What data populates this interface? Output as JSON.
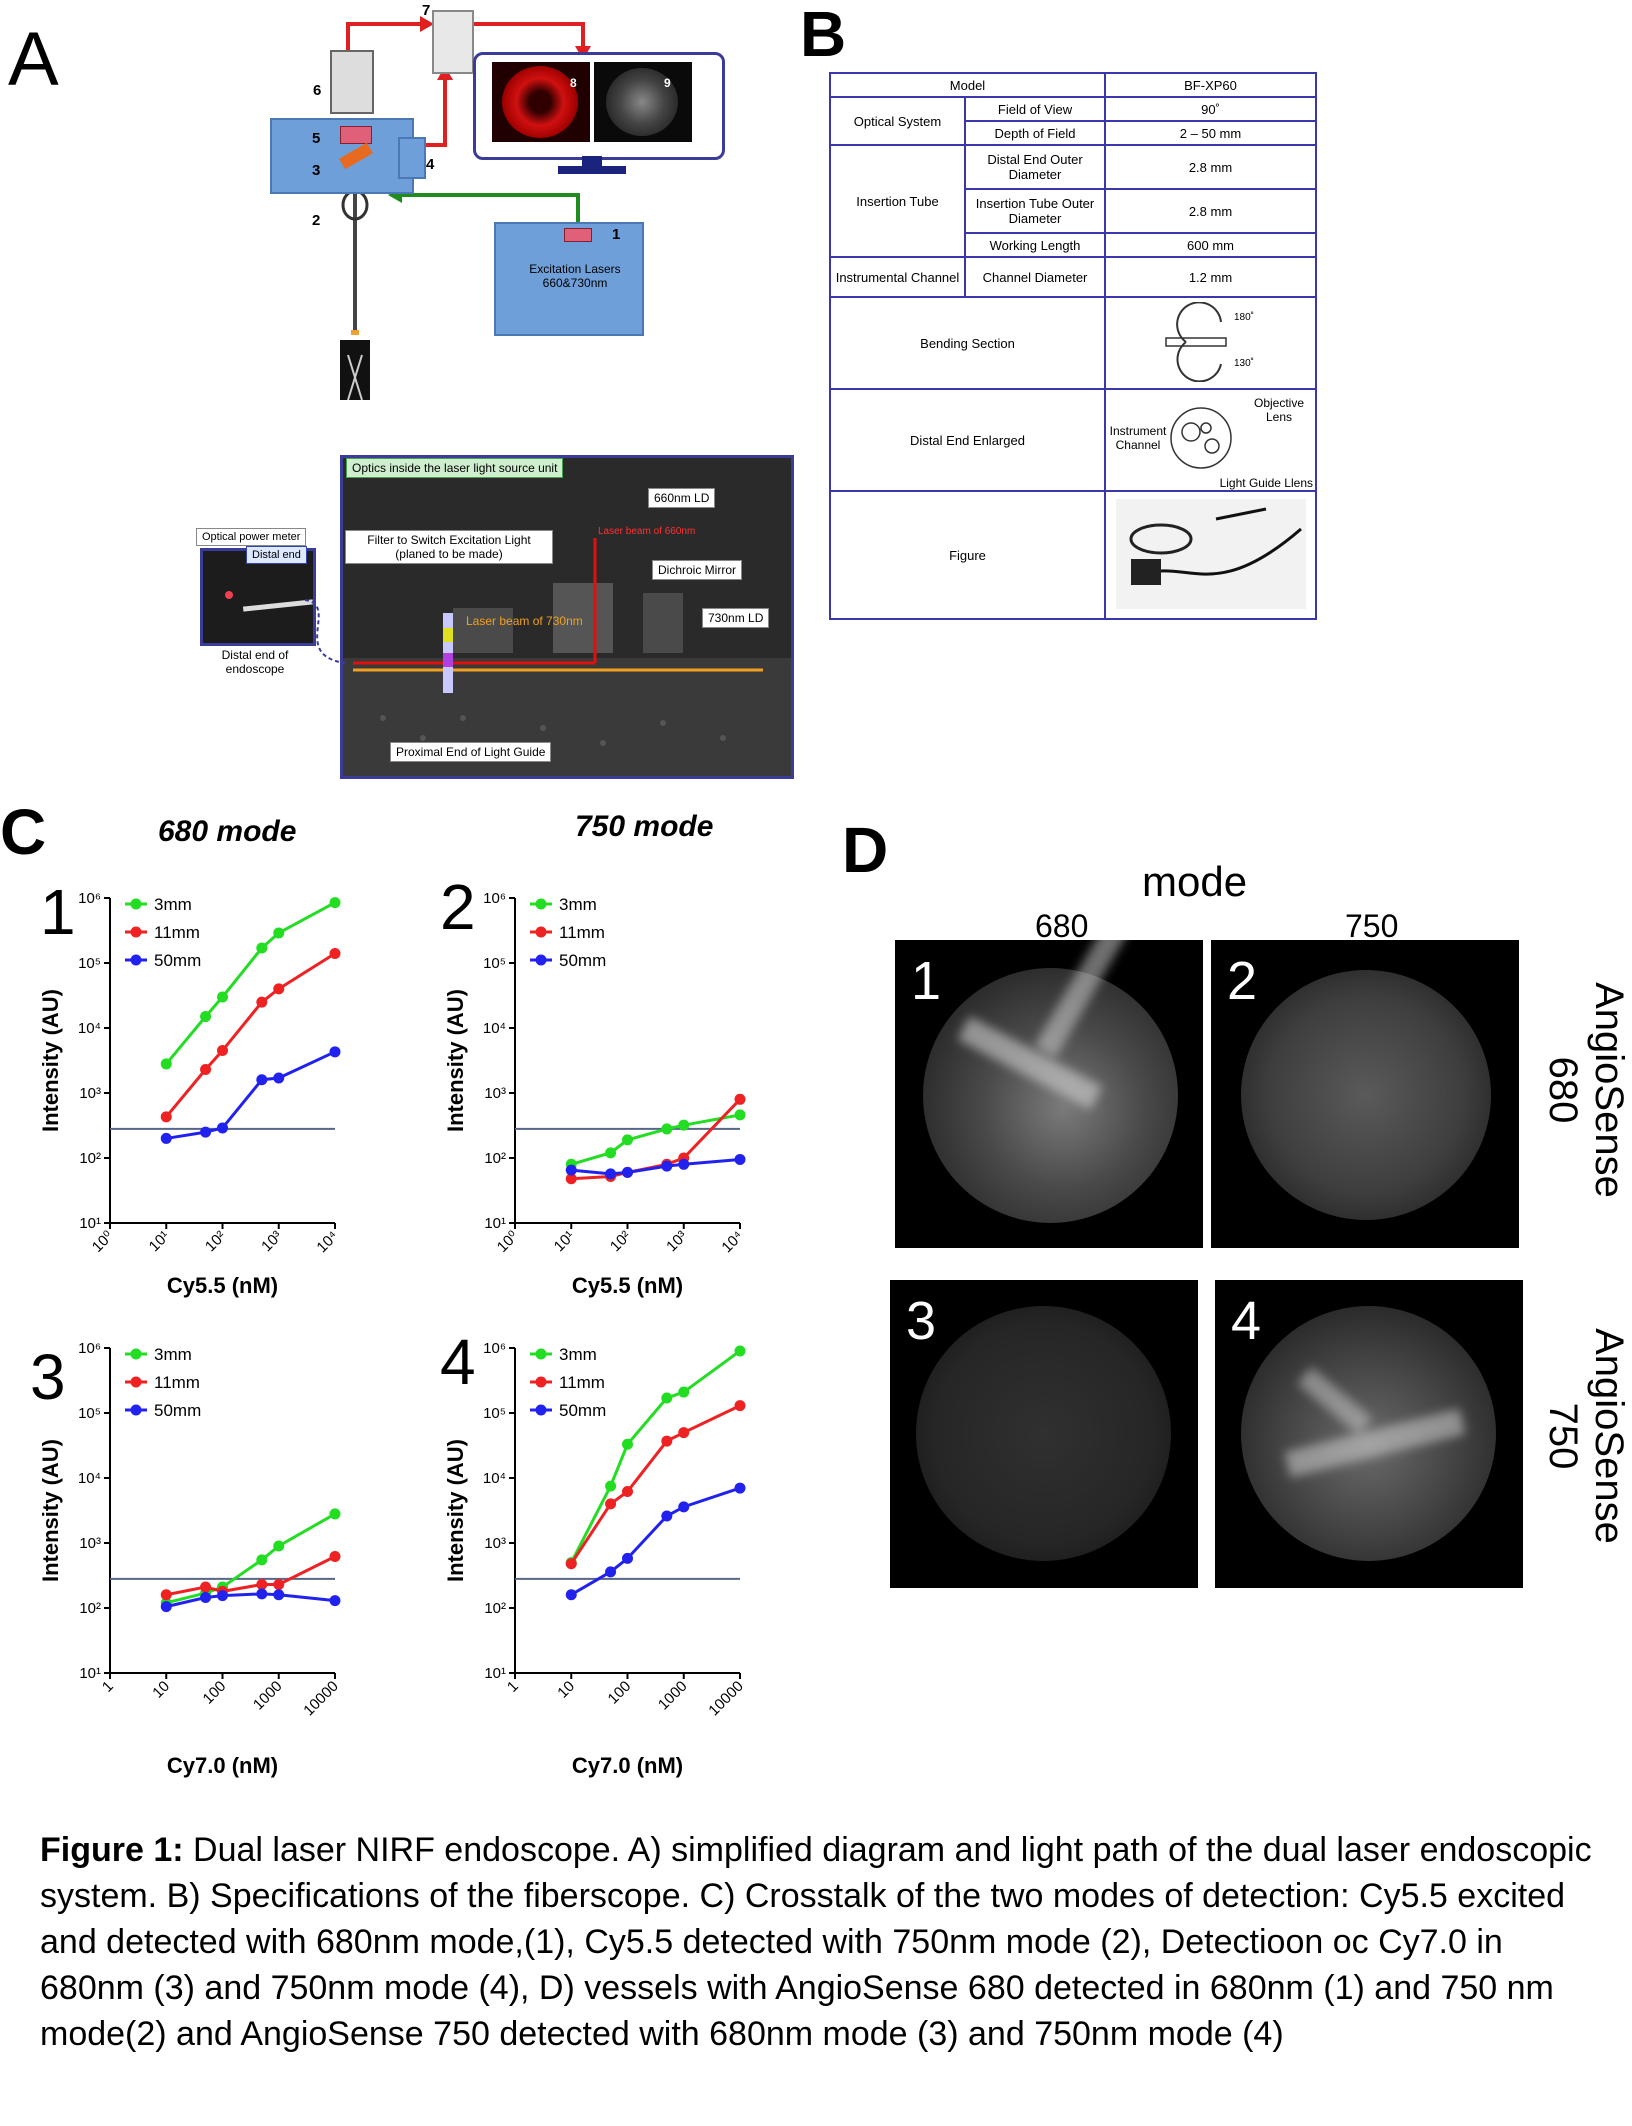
{
  "panels": {
    "a": "A",
    "b": "B",
    "c": "C",
    "d": "D"
  },
  "panel_a": {
    "component_numbers": [
      "1",
      "2",
      "3",
      "4",
      "5",
      "6",
      "7",
      "8",
      "9"
    ],
    "laser_box": "Excitation Lasers 660&730nm",
    "photo": {
      "header": "Optics inside the laser light source unit",
      "tags": {
        "ld660": "660nm LD",
        "filter": "Filter to Switch Excitation Light (planed to be made)",
        "dichroic": "Dichroic Mirror",
        "ld730": "730nm LD",
        "proximal": "Proximal End of Light Guide",
        "beam730": "Laser beam of 730nm",
        "beam660": "Laser beam of 660nm"
      }
    },
    "inset": {
      "power_meter": "Optical power meter",
      "distal_end": "Distal end",
      "distal_scope": "Distal end of endoscope"
    }
  },
  "panel_b": {
    "model_label": "Model",
    "model_value": "BF-XP60",
    "optical_system": "Optical System",
    "field_of_view": "Field of View",
    "fov_value": "90˚",
    "depth_of_field": "Depth of Field",
    "dof_value": "2 – 50 mm",
    "insertion_tube": "Insertion Tube",
    "distal_od": "Distal End Outer Diameter",
    "distal_od_value": "2.8 mm",
    "tube_od": "Insertion Tube Outer Diameter",
    "tube_od_value": "2.8 mm",
    "working_length": "Working Length",
    "working_length_value": "600 mm",
    "instrumental_channel": "Instrumental Channel",
    "channel_diameter": "Channel Diameter",
    "channel_diameter_value": "1.2 mm",
    "bending_section": "Bending Section",
    "bend_up": "180˚",
    "bend_down": "130˚",
    "distal_end_enlarged": "Distal End Enlarged",
    "objective_lens": "Objective Lens",
    "instrument_channel": "Instrument Channel",
    "light_guide_lens": "Light Guide Llens",
    "figure": "Figure"
  },
  "panel_c": {
    "mode_titles": [
      "680 mode",
      "750 mode"
    ],
    "chart_numbers": [
      "1",
      "2",
      "3",
      "4"
    ]
  },
  "chart_data": [
    {
      "type": "line",
      "chart_number": "1",
      "title": "680 mode",
      "xlabel": "Cy5.5 (nM)",
      "ylabel": "Intensity (AU)",
      "xscale": "log",
      "yscale": "log",
      "xlim": [
        1,
        10000
      ],
      "ylim": [
        10,
        1000000
      ],
      "x_tick_labels": [
        "10⁰",
        "10¹",
        "10²",
        "10³",
        "10⁴"
      ],
      "y_tick_labels": [
        "10¹",
        "10²",
        "10³",
        "10⁴",
        "10⁵",
        "10⁶"
      ],
      "x": [
        10,
        50,
        100,
        500,
        1000,
        10000
      ],
      "series": [
        {
          "name": "3mm",
          "color": "#22dd22",
          "values": [
            2800,
            15000,
            30000,
            170000,
            290000,
            850000
          ]
        },
        {
          "name": "11mm",
          "color": "#ee2222",
          "values": [
            430,
            2300,
            4500,
            25000,
            40000,
            140000
          ]
        },
        {
          "name": "50mm",
          "color": "#2222ee",
          "values": [
            200,
            250,
            290,
            1600,
            1700,
            4300
          ]
        }
      ],
      "threshold": 280,
      "legend": "top-left"
    },
    {
      "type": "line",
      "chart_number": "2",
      "title": "750 mode",
      "xlabel": "Cy5.5 (nM)",
      "ylabel": "Intensity (AU)",
      "xscale": "log",
      "yscale": "log",
      "xlim": [
        1,
        10000
      ],
      "ylim": [
        10,
        1000000
      ],
      "x_tick_labels": [
        "10⁰",
        "10¹",
        "10²",
        "10³",
        "10⁴"
      ],
      "y_tick_labels": [
        "10¹",
        "10²",
        "10³",
        "10⁴",
        "10⁵",
        "10⁶"
      ],
      "x": [
        10,
        50,
        100,
        500,
        1000,
        10000
      ],
      "series": [
        {
          "name": "3mm",
          "color": "#22dd22",
          "values": [
            80,
            120,
            190,
            280,
            320,
            460
          ]
        },
        {
          "name": "11mm",
          "color": "#ee2222",
          "values": [
            48,
            52,
            60,
            80,
            100,
            800
          ]
        },
        {
          "name": "50mm",
          "color": "#2222ee",
          "values": [
            65,
            57,
            60,
            75,
            80,
            95
          ]
        }
      ],
      "threshold": 280,
      "legend": "top-left"
    },
    {
      "type": "line",
      "chart_number": "3",
      "xlabel": "Cy7.0 (nM)",
      "ylabel": "Intensity (AU)",
      "xscale": "log",
      "yscale": "log",
      "xlim": [
        1,
        10000
      ],
      "ylim": [
        10,
        1000000
      ],
      "x_tick_labels": [
        "1",
        "10",
        "100",
        "1000",
        "10000"
      ],
      "y_tick_labels": [
        "10¹",
        "10²",
        "10³",
        "10⁴",
        "10⁵",
        "10⁶"
      ],
      "x": [
        10,
        50,
        100,
        500,
        1000,
        10000
      ],
      "series": [
        {
          "name": "3mm",
          "color": "#22dd22",
          "values": [
            120,
            170,
            210,
            550,
            900,
            2800
          ]
        },
        {
          "name": "11mm",
          "color": "#ee2222",
          "values": [
            160,
            210,
            180,
            230,
            230,
            620
          ]
        },
        {
          "name": "50mm",
          "color": "#2222ee",
          "values": [
            105,
            145,
            155,
            165,
            160,
            130
          ]
        }
      ],
      "threshold": 280,
      "legend": "top-left"
    },
    {
      "type": "line",
      "chart_number": "4",
      "xlabel": "Cy7.0 (nM)",
      "ylabel": "Intensity (AU)",
      "xscale": "log",
      "yscale": "log",
      "xlim": [
        1,
        10000
      ],
      "ylim": [
        10,
        1000000
      ],
      "x_tick_labels": [
        "1",
        "10",
        "100",
        "1000",
        "10000"
      ],
      "y_tick_labels": [
        "10¹",
        "10²",
        "10³",
        "10⁴",
        "10⁵",
        "10⁶"
      ],
      "x": [
        10,
        50,
        100,
        500,
        1000,
        10000
      ],
      "series": [
        {
          "name": "3mm",
          "color": "#22dd22",
          "values": [
            500,
            7500,
            33000,
            170000,
            210000,
            900000
          ]
        },
        {
          "name": "11mm",
          "color": "#ee2222",
          "values": [
            480,
            4000,
            6200,
            37000,
            50000,
            130000
          ]
        },
        {
          "name": "50mm",
          "color": "#2222ee",
          "values": [
            160,
            360,
            580,
            2600,
            3600,
            7000
          ]
        }
      ],
      "threshold": 280,
      "legend": "top-left"
    }
  ],
  "panel_d": {
    "mode_label": "mode",
    "col_labels": [
      "680",
      "750"
    ],
    "row_labels": [
      "AngioSense 680",
      "AngioSense 750"
    ],
    "image_numbers": [
      "1",
      "2",
      "3",
      "4"
    ]
  },
  "caption": {
    "bold": "Figure 1:",
    "text": " Dual laser NIRF endoscope. A) simplified diagram and light path of the dual laser endoscopic system. B) Specifications of the fiberscope. C) Crosstalk of the two modes of detection: Cy5.5 excited and detected with 680nm mode,(1), Cy5.5 detected with 750nm mode (2), Detectioon oc Cy7.0 in 680nm (3) and 750nm mode (4), D) vessels with AngioSense 680 detected in 680nm  (1) and 750 nm mode(2) and AngioSense 750 detected with 680nm mode (3) and 750nm mode (4)"
  }
}
